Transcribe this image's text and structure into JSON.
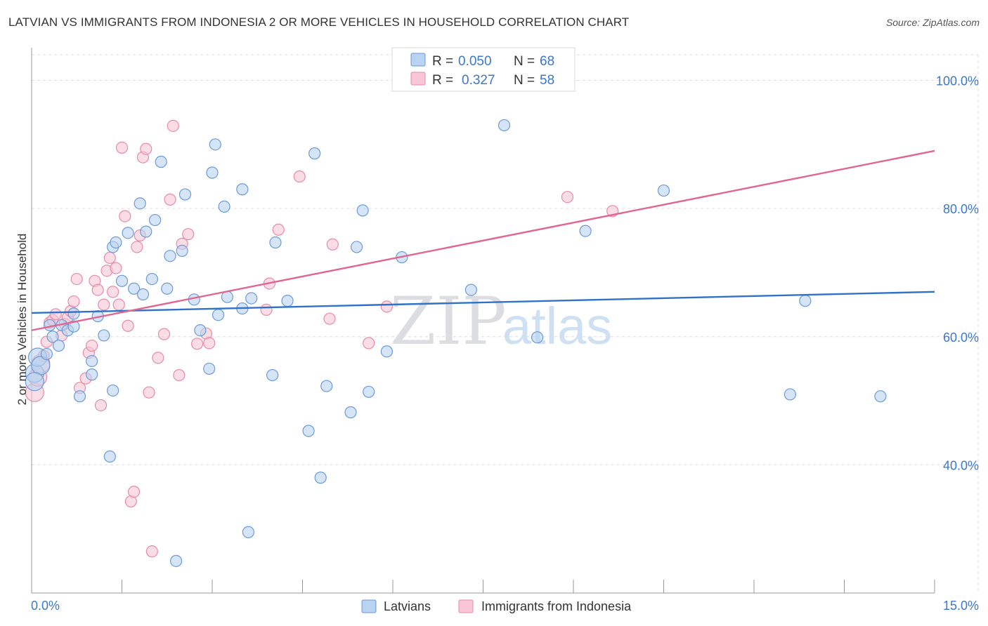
{
  "title": "LATVIAN VS IMMIGRANTS FROM INDONESIA 2 OR MORE VEHICLES IN HOUSEHOLD CORRELATION CHART",
  "source": "Source: ZipAtlas.com",
  "watermark": {
    "zip": "ZIP",
    "atlas": "atlas"
  },
  "legend": {
    "r_label": "R =",
    "n_label": "N =",
    "latvians": {
      "r": "0.050",
      "n": "68"
    },
    "indonesia": {
      "r": "0.327",
      "n": "58"
    }
  },
  "bottom_legend": {
    "latvians": "Latvians",
    "indonesia": "Immigrants from Indonesia"
  },
  "colors": {
    "blue_fill": "#b9d3f2",
    "blue_stroke": "#6c9ad6",
    "blue_line": "#2f72c8",
    "pink_fill": "#f8c6d6",
    "pink_stroke": "#e88aa9",
    "pink_line": "#e0668f",
    "grid": "#dddddd",
    "tick_text": "#3c78c8"
  },
  "chart_data": {
    "type": "scatter",
    "title": "LATVIAN VS IMMIGRANTS FROM INDONESIA 2 OR MORE VEHICLES IN HOUSEHOLD CORRELATION CHART",
    "xlabel": "",
    "ylabel": "2 or more Vehicles in Household",
    "xlim": [
      0,
      15
    ],
    "ylim": [
      20,
      104
    ],
    "x_tick_labels": [
      "0.0%",
      "15.0%"
    ],
    "y_ticks": [
      40,
      60,
      80,
      100
    ],
    "y_tick_labels": [
      "40.0%",
      "60.0%",
      "80.0%",
      "100.0%"
    ],
    "grid": true,
    "series": [
      {
        "name": "Latvians",
        "r": 0.05,
        "n": 68,
        "trend": [
          [
            0,
            63.7
          ],
          [
            15,
            67.0
          ]
        ],
        "points": [
          [
            0.05,
            54.3
          ],
          [
            0.1,
            56.8
          ],
          [
            0.15,
            55.5
          ],
          [
            0.25,
            57.3
          ],
          [
            0.3,
            61.8
          ],
          [
            0.35,
            60.0
          ],
          [
            0.45,
            58.6
          ],
          [
            0.5,
            61.8
          ],
          [
            0.6,
            61.0
          ],
          [
            0.7,
            63.6
          ],
          [
            0.7,
            61.6
          ],
          [
            0.8,
            50.7
          ],
          [
            1.0,
            56.2
          ],
          [
            1.0,
            54.1
          ],
          [
            1.1,
            63.2
          ],
          [
            1.2,
            60.2
          ],
          [
            1.3,
            41.3
          ],
          [
            1.35,
            51.6
          ],
          [
            1.35,
            74.0
          ],
          [
            1.4,
            74.7
          ],
          [
            1.5,
            68.7
          ],
          [
            1.6,
            76.2
          ],
          [
            1.7,
            67.5
          ],
          [
            1.8,
            80.8
          ],
          [
            1.85,
            66.6
          ],
          [
            1.9,
            76.4
          ],
          [
            2.0,
            69.0
          ],
          [
            2.05,
            78.2
          ],
          [
            2.15,
            87.3
          ],
          [
            2.25,
            67.5
          ],
          [
            2.3,
            72.6
          ],
          [
            2.4,
            25.0
          ],
          [
            2.5,
            73.4
          ],
          [
            2.55,
            82.2
          ],
          [
            2.7,
            65.8
          ],
          [
            2.8,
            61.0
          ],
          [
            2.95,
            55.0
          ],
          [
            3.0,
            85.6
          ],
          [
            3.05,
            90.0
          ],
          [
            3.1,
            63.4
          ],
          [
            3.2,
            80.3
          ],
          [
            3.25,
            66.2
          ],
          [
            3.5,
            64.4
          ],
          [
            3.5,
            83.0
          ],
          [
            3.6,
            29.5
          ],
          [
            3.65,
            66.0
          ],
          [
            4.0,
            54.0
          ],
          [
            4.05,
            74.7
          ],
          [
            4.25,
            65.6
          ],
          [
            4.6,
            45.3
          ],
          [
            4.7,
            88.6
          ],
          [
            4.8,
            38.0
          ],
          [
            4.9,
            52.3
          ],
          [
            5.3,
            48.2
          ],
          [
            5.4,
            74.0
          ],
          [
            5.5,
            79.7
          ],
          [
            5.6,
            51.4
          ],
          [
            5.9,
            57.7
          ],
          [
            6.15,
            72.4
          ],
          [
            7.3,
            67.3
          ],
          [
            7.85,
            93.0
          ],
          [
            8.4,
            59.9
          ],
          [
            9.2,
            76.5
          ],
          [
            10.5,
            82.8
          ],
          [
            12.6,
            51.0
          ],
          [
            12.85,
            65.6
          ],
          [
            14.1,
            50.7
          ],
          [
            0.05,
            53.0
          ]
        ]
      },
      {
        "name": "Immigrants from Indonesia",
        "r": 0.327,
        "n": 58,
        "trend": [
          [
            0,
            61.0
          ],
          [
            15,
            89.0
          ]
        ],
        "points": [
          [
            0.05,
            51.3
          ],
          [
            0.1,
            53.7
          ],
          [
            0.15,
            55.8
          ],
          [
            0.2,
            57.0
          ],
          [
            0.25,
            59.2
          ],
          [
            0.3,
            62.2
          ],
          [
            0.35,
            62.6
          ],
          [
            0.4,
            63.5
          ],
          [
            0.5,
            60.2
          ],
          [
            0.55,
            62.0
          ],
          [
            0.6,
            63.0
          ],
          [
            0.65,
            64.0
          ],
          [
            0.7,
            65.5
          ],
          [
            0.75,
            69.0
          ],
          [
            0.8,
            52.0
          ],
          [
            0.9,
            53.5
          ],
          [
            0.95,
            57.5
          ],
          [
            1.0,
            58.6
          ],
          [
            1.05,
            68.7
          ],
          [
            1.1,
            67.3
          ],
          [
            1.15,
            49.3
          ],
          [
            1.2,
            65.0
          ],
          [
            1.25,
            70.3
          ],
          [
            1.3,
            72.3
          ],
          [
            1.35,
            67.0
          ],
          [
            1.4,
            70.7
          ],
          [
            1.45,
            65.0
          ],
          [
            1.5,
            89.5
          ],
          [
            1.55,
            78.8
          ],
          [
            1.6,
            61.7
          ],
          [
            1.65,
            34.3
          ],
          [
            1.7,
            35.8
          ],
          [
            1.75,
            74.0
          ],
          [
            1.8,
            75.8
          ],
          [
            1.85,
            88.0
          ],
          [
            1.9,
            89.3
          ],
          [
            1.95,
            51.3
          ],
          [
            2.0,
            26.5
          ],
          [
            2.1,
            56.7
          ],
          [
            2.2,
            60.4
          ],
          [
            2.3,
            81.4
          ],
          [
            2.35,
            92.9
          ],
          [
            2.45,
            54.0
          ],
          [
            2.5,
            74.5
          ],
          [
            2.6,
            76.0
          ],
          [
            2.75,
            58.9
          ],
          [
            2.9,
            60.5
          ],
          [
            2.95,
            59.0
          ],
          [
            3.9,
            64.2
          ],
          [
            3.95,
            68.3
          ],
          [
            4.1,
            76.7
          ],
          [
            4.45,
            85.0
          ],
          [
            4.95,
            62.8
          ],
          [
            5.0,
            74.4
          ],
          [
            5.6,
            59.0
          ],
          [
            5.9,
            64.7
          ],
          [
            8.9,
            81.8
          ],
          [
            9.65,
            79.6
          ]
        ]
      }
    ]
  }
}
